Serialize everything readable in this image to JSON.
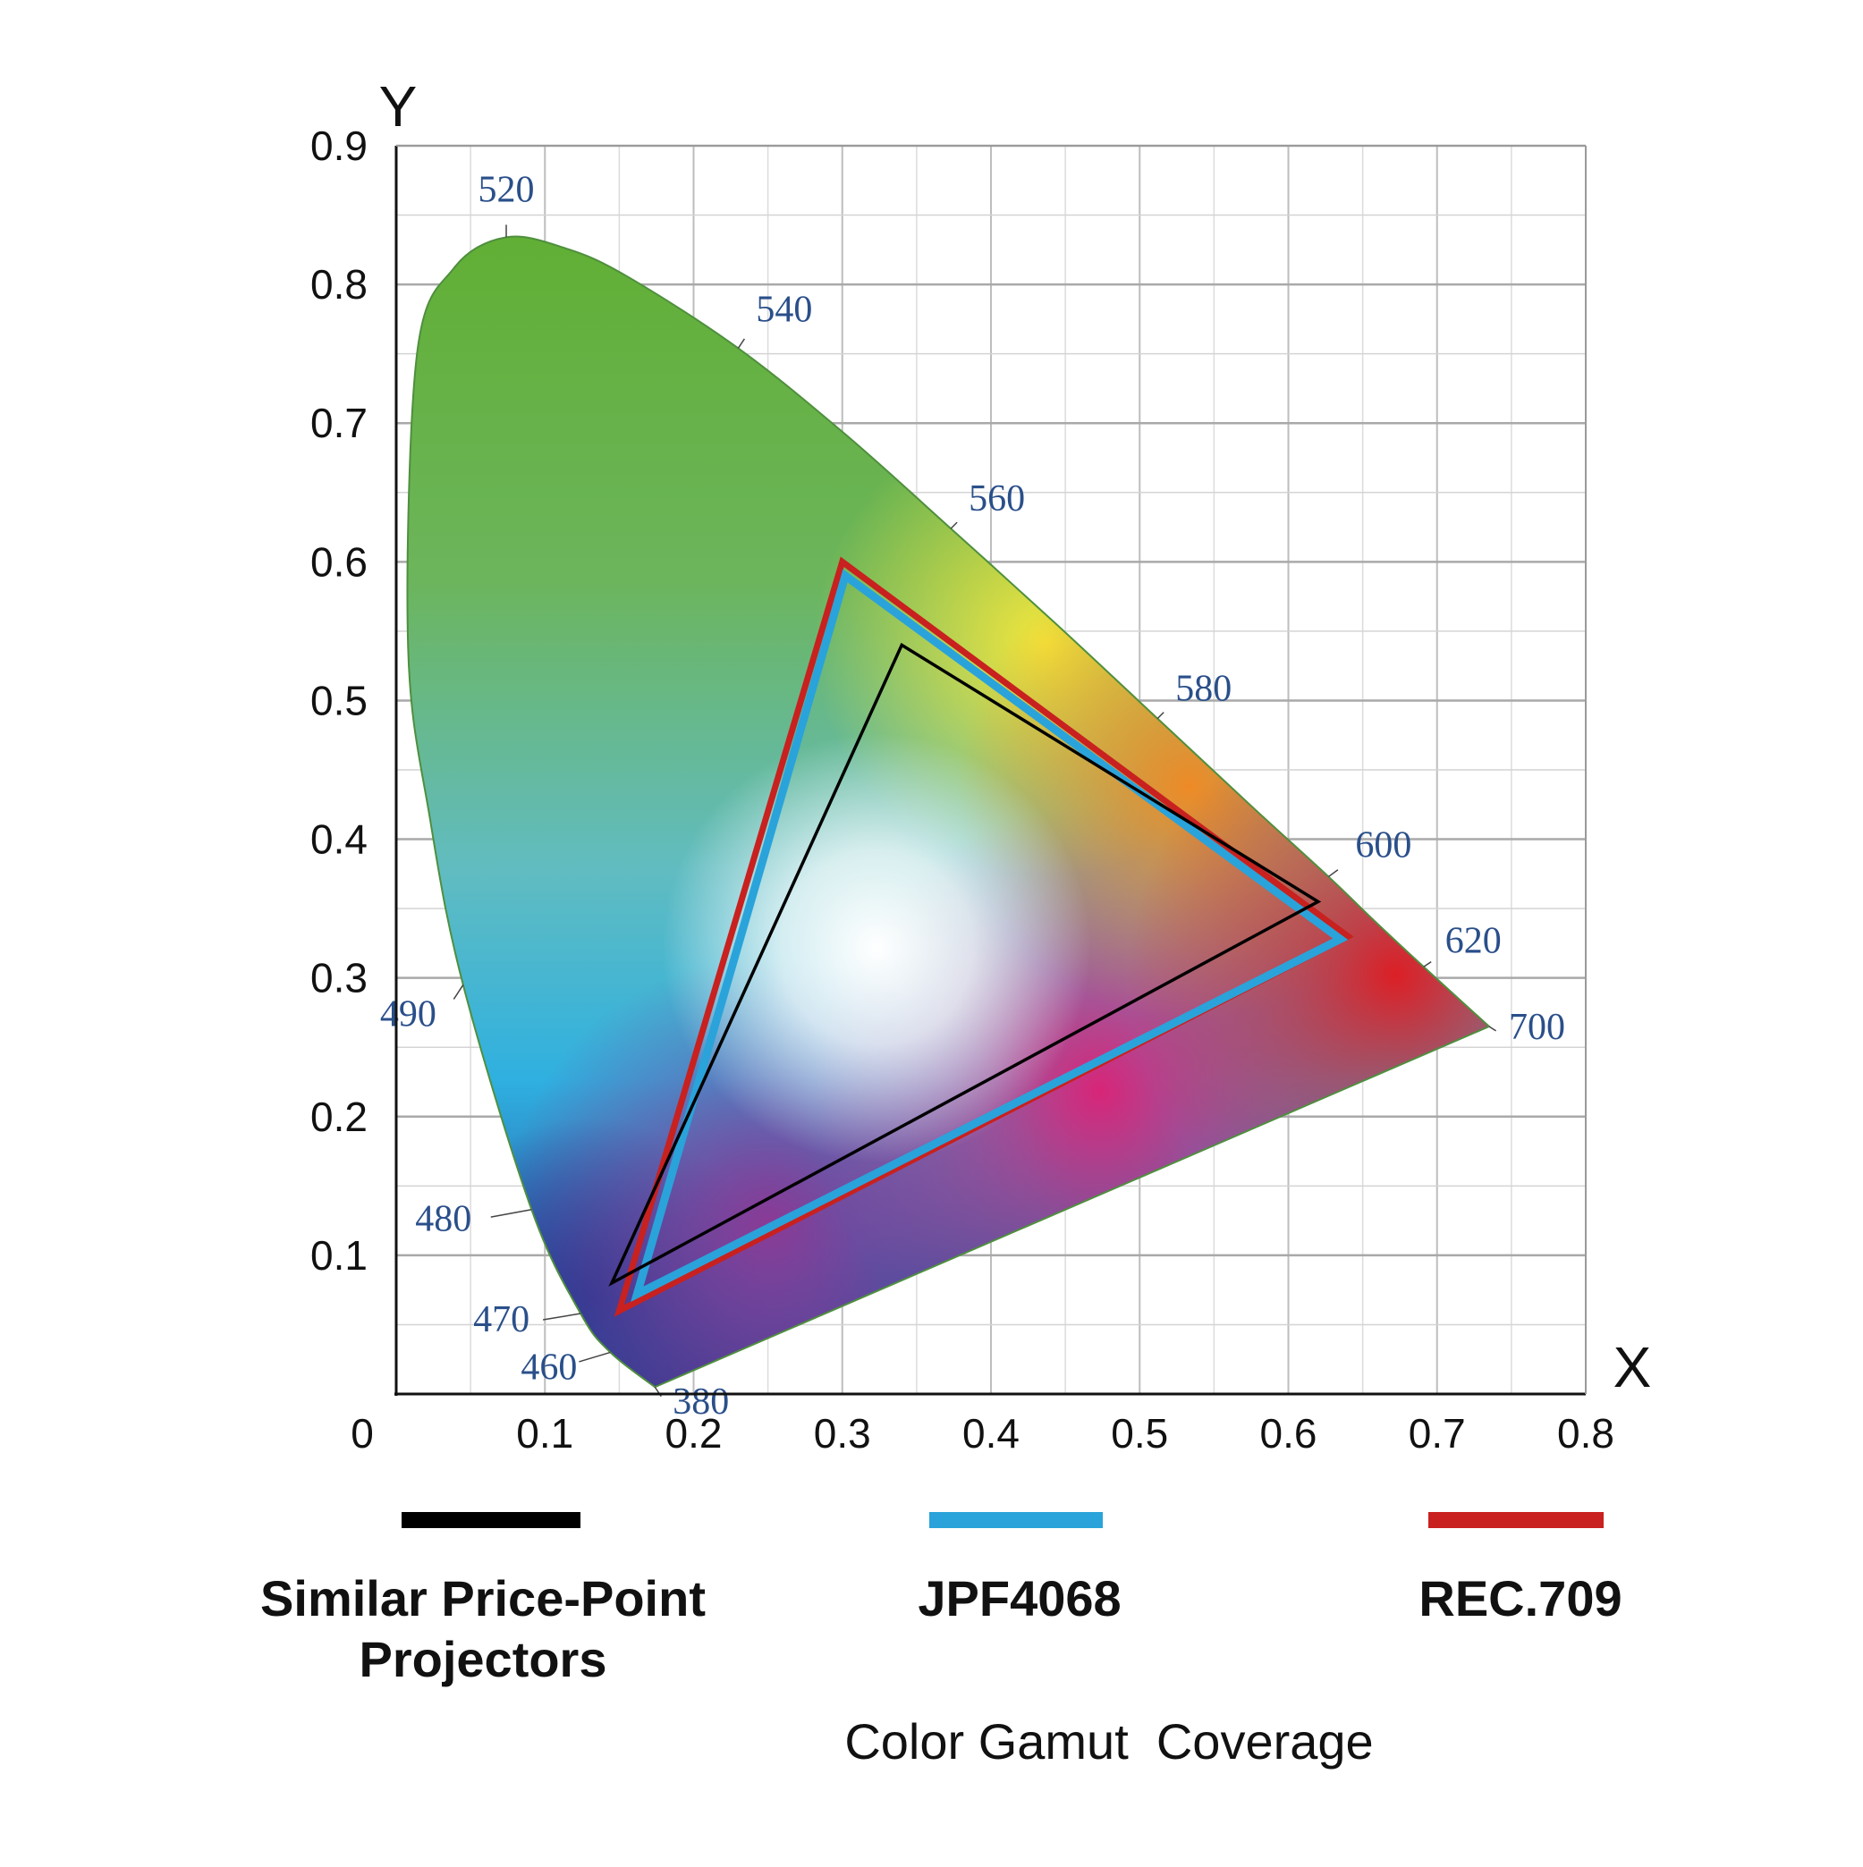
{
  "chart_data": {
    "type": "scatter",
    "title": "",
    "xlabel": "X",
    "ylabel": "Y",
    "xlim": [
      0,
      0.8
    ],
    "ylim": [
      0,
      0.9
    ],
    "grid": true,
    "x_ticks": [
      "0",
      "0.1",
      "0.2",
      "0.3",
      "0.4",
      "0.5",
      "0.6",
      "0.7",
      "0.8"
    ],
    "y_ticks": [
      "0.1",
      "0.2",
      "0.3",
      "0.4",
      "0.5",
      "0.6",
      "0.7",
      "0.8",
      "0.9"
    ],
    "spectral_locus": [
      {
        "nm": "380",
        "x": 0.174,
        "y": 0.005
      },
      {
        "nm": "460",
        "x": 0.144,
        "y": 0.03
      },
      {
        "nm": "470",
        "x": 0.124,
        "y": 0.058
      },
      {
        "nm": "480",
        "x": 0.091,
        "y": 0.133
      },
      {
        "nm": "490",
        "x": 0.045,
        "y": 0.295
      },
      {
        "nm": "",
        "x": 0.023,
        "y": 0.413
      },
      {
        "nm": "",
        "x": 0.008,
        "y": 0.538
      },
      {
        "nm": "",
        "x": 0.014,
        "y": 0.75
      },
      {
        "nm": "",
        "x": 0.039,
        "y": 0.812
      },
      {
        "nm": "520",
        "x": 0.074,
        "y": 0.834
      },
      {
        "nm": "",
        "x": 0.114,
        "y": 0.826
      },
      {
        "nm": "",
        "x": 0.155,
        "y": 0.806
      },
      {
        "nm": "540",
        "x": 0.23,
        "y": 0.754
      },
      {
        "nm": "",
        "x": 0.302,
        "y": 0.692
      },
      {
        "nm": "560",
        "x": 0.373,
        "y": 0.624
      },
      {
        "nm": "",
        "x": 0.444,
        "y": 0.555
      },
      {
        "nm": "580",
        "x": 0.512,
        "y": 0.487
      },
      {
        "nm": "",
        "x": 0.575,
        "y": 0.424
      },
      {
        "nm": "600",
        "x": 0.627,
        "y": 0.373
      },
      {
        "nm": "",
        "x": 0.658,
        "y": 0.341
      },
      {
        "nm": "620",
        "x": 0.691,
        "y": 0.308
      },
      {
        "nm": "700",
        "x": 0.735,
        "y": 0.265
      }
    ],
    "series": [
      {
        "name": "Similar Price-Point Projectors",
        "color": "#000000",
        "points": [
          {
            "x": 0.34,
            "y": 0.54
          },
          {
            "x": 0.62,
            "y": 0.355
          },
          {
            "x": 0.145,
            "y": 0.08
          }
        ]
      },
      {
        "name": "JPF4068",
        "color": "#2aa3da",
        "points": [
          {
            "x": 0.302,
            "y": 0.59
          },
          {
            "x": 0.635,
            "y": 0.328
          },
          {
            "x": 0.162,
            "y": 0.072
          }
        ]
      },
      {
        "name": "REC.709",
        "color": "#c8211f",
        "points": [
          {
            "x": 0.3,
            "y": 0.6
          },
          {
            "x": 0.64,
            "y": 0.33
          },
          {
            "x": 0.15,
            "y": 0.06
          }
        ]
      }
    ],
    "caption": "Color Gamut  Coverage"
  }
}
